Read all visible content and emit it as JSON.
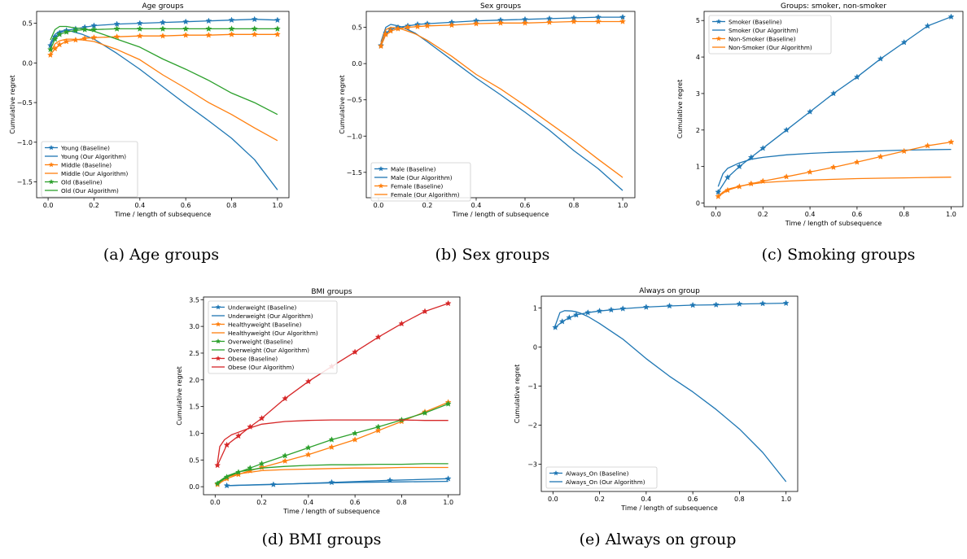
{
  "colors": {
    "blue": "#1f77b4",
    "orange": "#ff7f0e",
    "green": "#2ca02c",
    "red": "#d62728"
  },
  "chart_data": [
    {
      "id": "a",
      "type": "line",
      "title": "Age groups",
      "caption": "(a) Age groups",
      "xlabel": "Time / length of subsequence",
      "ylabel": "Cumulative regret",
      "xlim": [
        -0.05,
        1.05
      ],
      "ylim": [
        -1.7,
        0.65
      ],
      "xticks": [
        0.0,
        0.2,
        0.4,
        0.6,
        0.8,
        1.0
      ],
      "xtick_labels": [
        "0.0",
        "0.2",
        "0.4",
        "0.6",
        "0.8",
        "1.0"
      ],
      "yticks": [
        -1.5,
        -1.0,
        -0.5,
        0.0,
        0.5
      ],
      "ytick_labels": [
        "−1.5",
        "−1.0",
        "−0.5",
        "0.0",
        "0.5"
      ],
      "legend": "lower-left",
      "series": [
        {
          "name": "Young (Baseline)",
          "color": "#1f77b4",
          "marker": "star",
          "x": [
            0.01,
            0.03,
            0.05,
            0.08,
            0.12,
            0.16,
            0.2,
            0.3,
            0.4,
            0.5,
            0.6,
            0.7,
            0.8,
            0.9,
            1.0
          ],
          "y": [
            0.22,
            0.33,
            0.38,
            0.41,
            0.43,
            0.45,
            0.47,
            0.49,
            0.5,
            0.51,
            0.52,
            0.53,
            0.54,
            0.55,
            0.54
          ]
        },
        {
          "name": "Young (Our Algorithm)",
          "color": "#1f77b4",
          "marker": "none",
          "x": [
            0.01,
            0.03,
            0.05,
            0.08,
            0.1,
            0.15,
            0.2,
            0.3,
            0.4,
            0.5,
            0.6,
            0.7,
            0.8,
            0.9,
            1.0
          ],
          "y": [
            0.25,
            0.36,
            0.4,
            0.41,
            0.4,
            0.36,
            0.3,
            0.12,
            -0.08,
            -0.3,
            -0.52,
            -0.73,
            -0.95,
            -1.22,
            -1.6
          ]
        },
        {
          "name": "Middle (Baseline)",
          "color": "#ff7f0e",
          "marker": "star",
          "x": [
            0.01,
            0.03,
            0.05,
            0.08,
            0.12,
            0.16,
            0.2,
            0.3,
            0.4,
            0.5,
            0.6,
            0.7,
            0.8,
            0.9,
            1.0
          ],
          "y": [
            0.1,
            0.18,
            0.23,
            0.27,
            0.29,
            0.31,
            0.32,
            0.33,
            0.34,
            0.34,
            0.35,
            0.35,
            0.36,
            0.36,
            0.36
          ]
        },
        {
          "name": "Middle (Our Algorithm)",
          "color": "#ff7f0e",
          "marker": "none",
          "x": [
            0.01,
            0.03,
            0.05,
            0.08,
            0.1,
            0.15,
            0.2,
            0.3,
            0.4,
            0.5,
            0.6,
            0.7,
            0.8,
            0.9,
            1.0
          ],
          "y": [
            0.13,
            0.24,
            0.28,
            0.3,
            0.3,
            0.29,
            0.27,
            0.17,
            0.04,
            -0.15,
            -0.32,
            -0.5,
            -0.65,
            -0.82,
            -0.98
          ]
        },
        {
          "name": "Old (Baseline)",
          "color": "#2ca02c",
          "marker": "star",
          "x": [
            0.01,
            0.03,
            0.05,
            0.08,
            0.12,
            0.16,
            0.2,
            0.3,
            0.4,
            0.5,
            0.6,
            0.7,
            0.8,
            0.9,
            1.0
          ],
          "y": [
            0.17,
            0.3,
            0.36,
            0.39,
            0.41,
            0.42,
            0.42,
            0.43,
            0.43,
            0.43,
            0.43,
            0.43,
            0.43,
            0.43,
            0.43
          ]
        },
        {
          "name": "Old (Our Algorithm)",
          "color": "#2ca02c",
          "marker": "none",
          "x": [
            0.01,
            0.03,
            0.05,
            0.08,
            0.1,
            0.15,
            0.2,
            0.3,
            0.4,
            0.5,
            0.6,
            0.7,
            0.8,
            0.9,
            1.0
          ],
          "y": [
            0.29,
            0.42,
            0.46,
            0.46,
            0.45,
            0.43,
            0.4,
            0.3,
            0.2,
            0.05,
            -0.08,
            -0.22,
            -0.38,
            -0.5,
            -0.65
          ]
        }
      ]
    },
    {
      "id": "b",
      "type": "line",
      "title": "Sex groups",
      "caption": "(b) Sex groups",
      "xlabel": "Time / length of subsequence",
      "ylabel": "Cumulative regret",
      "xlim": [
        -0.05,
        1.05
      ],
      "ylim": [
        -1.85,
        0.72
      ],
      "xticks": [
        0.0,
        0.2,
        0.4,
        0.6,
        0.8,
        1.0
      ],
      "xtick_labels": [
        "0.0",
        "0.2",
        "0.4",
        "0.6",
        "0.8",
        "1.0"
      ],
      "yticks": [
        -1.5,
        -1.0,
        -0.5,
        0.0,
        0.5
      ],
      "ytick_labels": [
        "−1.5",
        "−1.0",
        "−0.5",
        "0.0",
        "0.5"
      ],
      "legend": "lower-left",
      "series": [
        {
          "name": "Male (Baseline)",
          "color": "#1f77b4",
          "marker": "star",
          "x": [
            0.01,
            0.03,
            0.05,
            0.08,
            0.12,
            0.16,
            0.2,
            0.3,
            0.4,
            0.5,
            0.6,
            0.7,
            0.8,
            0.9,
            1.0
          ],
          "y": [
            0.25,
            0.42,
            0.47,
            0.5,
            0.52,
            0.54,
            0.55,
            0.57,
            0.59,
            0.6,
            0.61,
            0.62,
            0.63,
            0.64,
            0.64
          ]
        },
        {
          "name": "Male (Our Algorithm)",
          "color": "#1f77b4",
          "marker": "none",
          "x": [
            0.01,
            0.03,
            0.05,
            0.08,
            0.1,
            0.15,
            0.2,
            0.3,
            0.4,
            0.5,
            0.6,
            0.7,
            0.8,
            0.9,
            1.0
          ],
          "y": [
            0.3,
            0.5,
            0.54,
            0.52,
            0.5,
            0.42,
            0.3,
            0.05,
            -0.2,
            -0.43,
            -0.67,
            -0.92,
            -1.2,
            -1.45,
            -1.75
          ]
        },
        {
          "name": "Female (Baseline)",
          "color": "#ff7f0e",
          "marker": "star",
          "x": [
            0.01,
            0.03,
            0.05,
            0.08,
            0.12,
            0.16,
            0.2,
            0.3,
            0.4,
            0.5,
            0.6,
            0.7,
            0.8,
            0.9,
            1.0
          ],
          "y": [
            0.24,
            0.4,
            0.45,
            0.48,
            0.5,
            0.51,
            0.52,
            0.53,
            0.55,
            0.56,
            0.56,
            0.57,
            0.58,
            0.58,
            0.58
          ]
        },
        {
          "name": "Female (Our Algorithm)",
          "color": "#ff7f0e",
          "marker": "none",
          "x": [
            0.01,
            0.03,
            0.05,
            0.08,
            0.1,
            0.15,
            0.2,
            0.3,
            0.4,
            0.5,
            0.6,
            0.7,
            0.8,
            0.9,
            1.0
          ],
          "y": [
            0.28,
            0.47,
            0.5,
            0.49,
            0.47,
            0.41,
            0.32,
            0.1,
            -0.15,
            -0.35,
            -0.58,
            -0.82,
            -1.06,
            -1.32,
            -1.57
          ]
        }
      ]
    },
    {
      "id": "c",
      "type": "line",
      "title": "Groups: smoker, non-smoker",
      "caption": "(c) Smoking groups",
      "xlabel": "Time / length of subsequence",
      "ylabel": "Cumulative regret",
      "xlim": [
        -0.05,
        1.05
      ],
      "ylim": [
        -0.1,
        5.25
      ],
      "xticks": [
        0.0,
        0.2,
        0.4,
        0.6,
        0.8,
        1.0
      ],
      "xtick_labels": [
        "0.0",
        "0.2",
        "0.4",
        "0.6",
        "0.8",
        "1.0"
      ],
      "yticks": [
        0,
        1,
        2,
        3,
        4,
        5
      ],
      "ytick_labels": [
        "0",
        "1",
        "2",
        "3",
        "4",
        "5"
      ],
      "legend": "upper-left",
      "series": [
        {
          "name": "Smoker (Baseline)",
          "color": "#1f77b4",
          "marker": "star",
          "x": [
            0.01,
            0.05,
            0.1,
            0.15,
            0.2,
            0.3,
            0.4,
            0.5,
            0.6,
            0.7,
            0.8,
            0.9,
            1.0
          ],
          "y": [
            0.3,
            0.7,
            1.0,
            1.25,
            1.5,
            2.0,
            2.5,
            3.0,
            3.45,
            3.95,
            4.4,
            4.85,
            5.1
          ]
        },
        {
          "name": "Smoker (Our Algorithm)",
          "color": "#1f77b4",
          "marker": "none",
          "x": [
            0.01,
            0.03,
            0.05,
            0.1,
            0.15,
            0.2,
            0.3,
            0.4,
            0.5,
            0.6,
            0.7,
            0.8,
            0.9,
            1.0
          ],
          "y": [
            0.45,
            0.8,
            0.95,
            1.1,
            1.2,
            1.25,
            1.32,
            1.36,
            1.39,
            1.41,
            1.43,
            1.45,
            1.46,
            1.47
          ]
        },
        {
          "name": "Non-Smoker (Baseline)",
          "color": "#ff7f0e",
          "marker": "star",
          "x": [
            0.01,
            0.05,
            0.1,
            0.15,
            0.2,
            0.3,
            0.4,
            0.5,
            0.6,
            0.7,
            0.8,
            0.9,
            1.0
          ],
          "y": [
            0.18,
            0.35,
            0.45,
            0.53,
            0.6,
            0.72,
            0.85,
            0.98,
            1.12,
            1.27,
            1.42,
            1.57,
            1.67
          ]
        },
        {
          "name": "Non-Smoker (Our Algorithm)",
          "color": "#ff7f0e",
          "marker": "none",
          "x": [
            0.01,
            0.03,
            0.05,
            0.1,
            0.15,
            0.2,
            0.3,
            0.4,
            0.5,
            0.6,
            0.7,
            0.8,
            0.9,
            1.0
          ],
          "y": [
            0.18,
            0.3,
            0.38,
            0.46,
            0.52,
            0.56,
            0.6,
            0.63,
            0.65,
            0.67,
            0.68,
            0.69,
            0.7,
            0.71
          ]
        }
      ]
    },
    {
      "id": "d",
      "type": "line",
      "title": "BMI groups",
      "caption": "(d) BMI groups",
      "xlabel": "Time / length of subsequence",
      "ylabel": "Cumulative regret",
      "xlim": [
        -0.05,
        1.05
      ],
      "ylim": [
        -0.15,
        3.55
      ],
      "xticks": [
        0.0,
        0.2,
        0.4,
        0.6,
        0.8,
        1.0
      ],
      "xtick_labels": [
        "0.0",
        "0.2",
        "0.4",
        "0.6",
        "0.8",
        "1.0"
      ],
      "yticks": [
        0.0,
        0.5,
        1.0,
        1.5,
        2.0,
        2.5,
        3.0,
        3.5
      ],
      "ytick_labels": [
        "0.0",
        "0.5",
        "1.0",
        "1.5",
        "2.0",
        "2.5",
        "3.0",
        "3.5"
      ],
      "legend": "upper-left",
      "series": [
        {
          "name": "Underweight (Baseline)",
          "color": "#1f77b4",
          "marker": "star",
          "x": [
            0.05,
            0.25,
            0.5,
            0.75,
            1.0
          ],
          "y": [
            0.02,
            0.04,
            0.08,
            0.12,
            0.15
          ]
        },
        {
          "name": "Underweight (Our Algorithm)",
          "color": "#1f77b4",
          "marker": "none",
          "x": [
            0.05,
            0.2,
            0.4,
            0.6,
            0.8,
            1.0
          ],
          "y": [
            0.02,
            0.04,
            0.06,
            0.08,
            0.09,
            0.1
          ]
        },
        {
          "name": "Healthyweight (Baseline)",
          "color": "#ff7f0e",
          "marker": "star",
          "x": [
            0.01,
            0.05,
            0.1,
            0.15,
            0.2,
            0.3,
            0.4,
            0.5,
            0.6,
            0.7,
            0.8,
            0.9,
            1.0
          ],
          "y": [
            0.04,
            0.15,
            0.23,
            0.3,
            0.36,
            0.48,
            0.6,
            0.74,
            0.88,
            1.05,
            1.22,
            1.4,
            1.58
          ]
        },
        {
          "name": "Healthyweight (Our Algorithm)",
          "color": "#ff7f0e",
          "marker": "none",
          "x": [
            0.01,
            0.05,
            0.1,
            0.2,
            0.3,
            0.4,
            0.5,
            0.6,
            0.7,
            0.8,
            0.9,
            1.0
          ],
          "y": [
            0.06,
            0.18,
            0.24,
            0.3,
            0.32,
            0.33,
            0.34,
            0.35,
            0.35,
            0.36,
            0.36,
            0.36
          ]
        },
        {
          "name": "Overweight (Baseline)",
          "color": "#2ca02c",
          "marker": "star",
          "x": [
            0.01,
            0.05,
            0.1,
            0.15,
            0.2,
            0.3,
            0.4,
            0.5,
            0.6,
            0.7,
            0.8,
            0.9,
            1.0
          ],
          "y": [
            0.06,
            0.18,
            0.27,
            0.35,
            0.43,
            0.58,
            0.73,
            0.88,
            1.0,
            1.12,
            1.25,
            1.38,
            1.55
          ]
        },
        {
          "name": "Overweight (Our Algorithm)",
          "color": "#2ca02c",
          "marker": "none",
          "x": [
            0.01,
            0.05,
            0.1,
            0.2,
            0.3,
            0.4,
            0.5,
            0.6,
            0.7,
            0.8,
            0.9,
            1.0
          ],
          "y": [
            0.08,
            0.2,
            0.28,
            0.35,
            0.38,
            0.4,
            0.41,
            0.41,
            0.42,
            0.42,
            0.43,
            0.43
          ]
        },
        {
          "name": "Obese (Baseline)",
          "color": "#d62728",
          "marker": "star",
          "x": [
            0.01,
            0.05,
            0.1,
            0.15,
            0.2,
            0.3,
            0.4,
            0.5,
            0.6,
            0.7,
            0.8,
            0.9,
            1.0
          ],
          "y": [
            0.4,
            0.78,
            0.95,
            1.12,
            1.28,
            1.65,
            1.97,
            2.25,
            2.52,
            2.8,
            3.05,
            3.28,
            3.43
          ]
        },
        {
          "name": "Obese (Our Algorithm)",
          "color": "#d62728",
          "marker": "none",
          "x": [
            0.01,
            0.02,
            0.04,
            0.07,
            0.1,
            0.15,
            0.2,
            0.3,
            0.4,
            0.5,
            0.6,
            0.7,
            0.8,
            0.9,
            1.0
          ],
          "y": [
            0.45,
            0.75,
            0.88,
            0.97,
            1.02,
            1.1,
            1.17,
            1.22,
            1.24,
            1.25,
            1.25,
            1.25,
            1.25,
            1.24,
            1.24
          ]
        }
      ]
    },
    {
      "id": "e",
      "type": "line",
      "title": "Always on group",
      "caption": "(e) Always on group",
      "xlabel": "Time / length of subsequence",
      "ylabel": "Cumulative regret",
      "xlim": [
        -0.05,
        1.05
      ],
      "ylim": [
        -3.7,
        1.3
      ],
      "xticks": [
        0.0,
        0.2,
        0.4,
        0.6,
        0.8,
        1.0
      ],
      "xtick_labels": [
        "0.0",
        "0.2",
        "0.4",
        "0.6",
        "0.8",
        "1.0"
      ],
      "yticks": [
        -3,
        -2,
        -1,
        0,
        1
      ],
      "ytick_labels": [
        "−3",
        "−2",
        "−1",
        "0",
        "1"
      ],
      "legend": "lower-left",
      "series": [
        {
          "name": "Always_On (Baseline)",
          "color": "#1f77b4",
          "marker": "star",
          "x": [
            0.01,
            0.04,
            0.07,
            0.1,
            0.15,
            0.2,
            0.25,
            0.3,
            0.4,
            0.5,
            0.6,
            0.7,
            0.8,
            0.9,
            1.0
          ],
          "y": [
            0.5,
            0.65,
            0.75,
            0.82,
            0.88,
            0.92,
            0.95,
            0.98,
            1.02,
            1.05,
            1.07,
            1.08,
            1.1,
            1.11,
            1.12
          ]
        },
        {
          "name": "Always_On (Our Algorithm)",
          "color": "#1f77b4",
          "marker": "none",
          "x": [
            0.01,
            0.03,
            0.05,
            0.08,
            0.1,
            0.12,
            0.15,
            0.2,
            0.3,
            0.4,
            0.5,
            0.6,
            0.7,
            0.8,
            0.9,
            1.0
          ],
          "y": [
            0.55,
            0.88,
            0.93,
            0.92,
            0.9,
            0.86,
            0.78,
            0.6,
            0.2,
            -0.3,
            -0.75,
            -1.15,
            -1.6,
            -2.1,
            -2.7,
            -3.45
          ]
        }
      ]
    }
  ]
}
